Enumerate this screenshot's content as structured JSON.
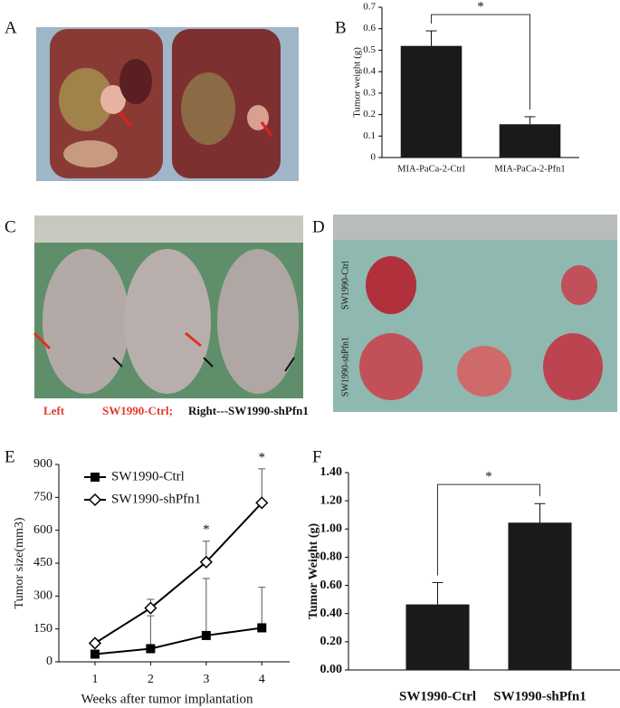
{
  "photos": [
    {
      "label": "A"
    },
    {
      "label": "C",
      "caption": [
        "Left",
        "SW1990-Ctrl;",
        "Right---SW1990-shPfn1"
      ]
    },
    {
      "label": "D",
      "row_labels": [
        "SW1990-Ctrl",
        "SW1990-shPfn1"
      ]
    }
  ],
  "chart_data": [
    {
      "type": "bar",
      "label": "B",
      "ylabel": "Tumor weight (g)",
      "categories": [
        "MIA-PaCa-2-Ctrl",
        "MIA-PaCa-2-Pfn1"
      ],
      "values": [
        0.52,
        0.155
      ],
      "errors": [
        0.07,
        0.035
      ],
      "color": "#1a1a1a",
      "ylim": [
        0,
        0.7
      ],
      "yticks": [
        0,
        0.1,
        0.2,
        0.3,
        0.4,
        0.5,
        0.6,
        0.7
      ],
      "significance": "*",
      "bold": false
    },
    {
      "type": "line",
      "label": "E",
      "xlabel": "Weeks after tumor implantation",
      "ylabel": "Tumor size(mm3)",
      "x": [
        1,
        2,
        3,
        4
      ],
      "xlim": [
        0.35,
        4.5
      ],
      "xticks": [
        1,
        2,
        3,
        4
      ],
      "ylim": [
        0,
        900
      ],
      "yticks": [
        0,
        150,
        300,
        450,
        600,
        750,
        900
      ],
      "legend": "upper left",
      "series": [
        {
          "name": "SW1990-Ctrl",
          "color": "#000000",
          "marker": "square",
          "values": [
            35,
            60,
            120,
            155
          ],
          "errors": [
            null,
            150,
            260,
            185
          ]
        },
        {
          "name": "SW1990-shPfn1",
          "color": "#000000",
          "marker": "diamond",
          "values": [
            85,
            245,
            455,
            725
          ],
          "errors": [
            null,
            40,
            95,
            155
          ]
        }
      ],
      "annotations": [
        {
          "x": 3,
          "text": "*"
        },
        {
          "x": 4,
          "text": "*"
        }
      ]
    },
    {
      "type": "bar",
      "label": "F",
      "ylabel": "Tumor Weight (g)",
      "categories": [
        "SW1990-Ctrl",
        "SW1990-shPfn1"
      ],
      "values": [
        0.465,
        1.045
      ],
      "errors": [
        0.155,
        0.135
      ],
      "color": "#1a1a1a",
      "ylim": [
        0,
        1.4
      ],
      "yticks": [
        {
          "value": 0,
          "label": "0.00"
        },
        {
          "value": 0.2,
          "label": "0.20"
        },
        {
          "value": 0.4,
          "label": "0.40"
        },
        {
          "value": 0.6,
          "label": "0.60"
        },
        {
          "value": 0.8,
          "label": "0.80"
        },
        {
          "value": 1.0,
          "label": "1.00"
        },
        {
          "value": 1.2,
          "label": "1.20"
        },
        {
          "value": 1.4,
          "label": "1.40"
        }
      ],
      "significance": "*",
      "bold": true
    }
  ]
}
